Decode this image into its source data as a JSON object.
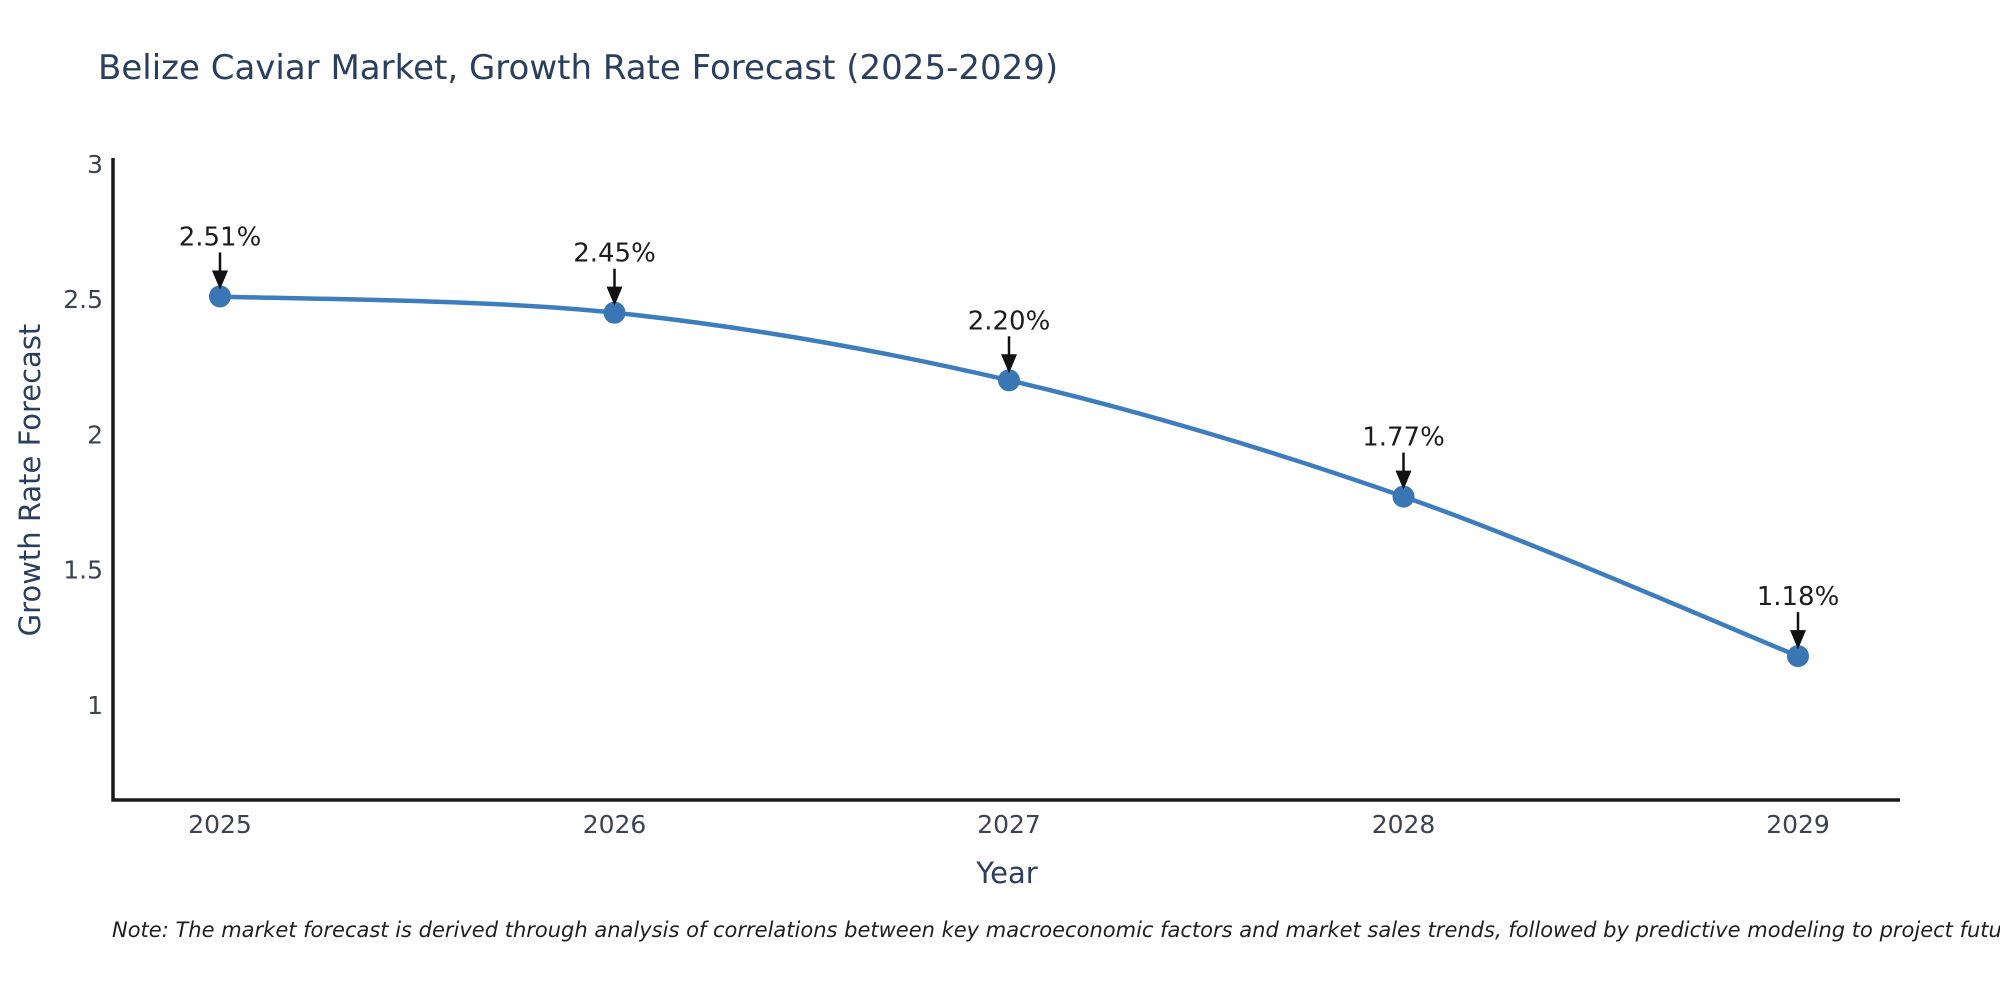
{
  "chart": {
    "title": "Belize Caviar Market, Growth Rate Forecast (2025-2029)",
    "xlabel": "Year",
    "ylabel": "Growth Rate Forecast",
    "note": "Note: The market forecast is derived through analysis of correlations between key macroeconomic factors and market sales trends, followed by predictive modeling to project future sales",
    "colors": {
      "title_text": "#2a3f5f",
      "tick_text": "#3b4252",
      "annotation_text": "#1c1c1c",
      "axis_line": "#1a1a1a",
      "line": "#3e7dbd",
      "marker": "#3a76b4",
      "arrow": "#111111",
      "background": "#ffffff"
    }
  },
  "chart_data": {
    "type": "line",
    "title": "Belize Caviar Market, Growth Rate Forecast (2025-2029)",
    "xlabel": "Year",
    "ylabel": "Growth Rate Forecast",
    "x": [
      2025,
      2026,
      2027,
      2028,
      2029
    ],
    "values": [
      2.51,
      2.45,
      2.2,
      1.77,
      1.18
    ],
    "point_labels": [
      "2.51%",
      "2.45%",
      "2.20%",
      "1.77%",
      "1.18%"
    ],
    "xticks": [
      "2025",
      "2026",
      "2027",
      "2028",
      "2029"
    ],
    "yticks": [
      1,
      1.5,
      2,
      2.5,
      3
    ],
    "ytick_labels": [
      "1",
      "1.5",
      "2",
      "2.5",
      "3"
    ],
    "ylim": [
      0.648,
      3.022
    ],
    "grid": false,
    "legend": "none",
    "marker_style": "circle",
    "annotation_style": "label-with-down-arrow"
  }
}
